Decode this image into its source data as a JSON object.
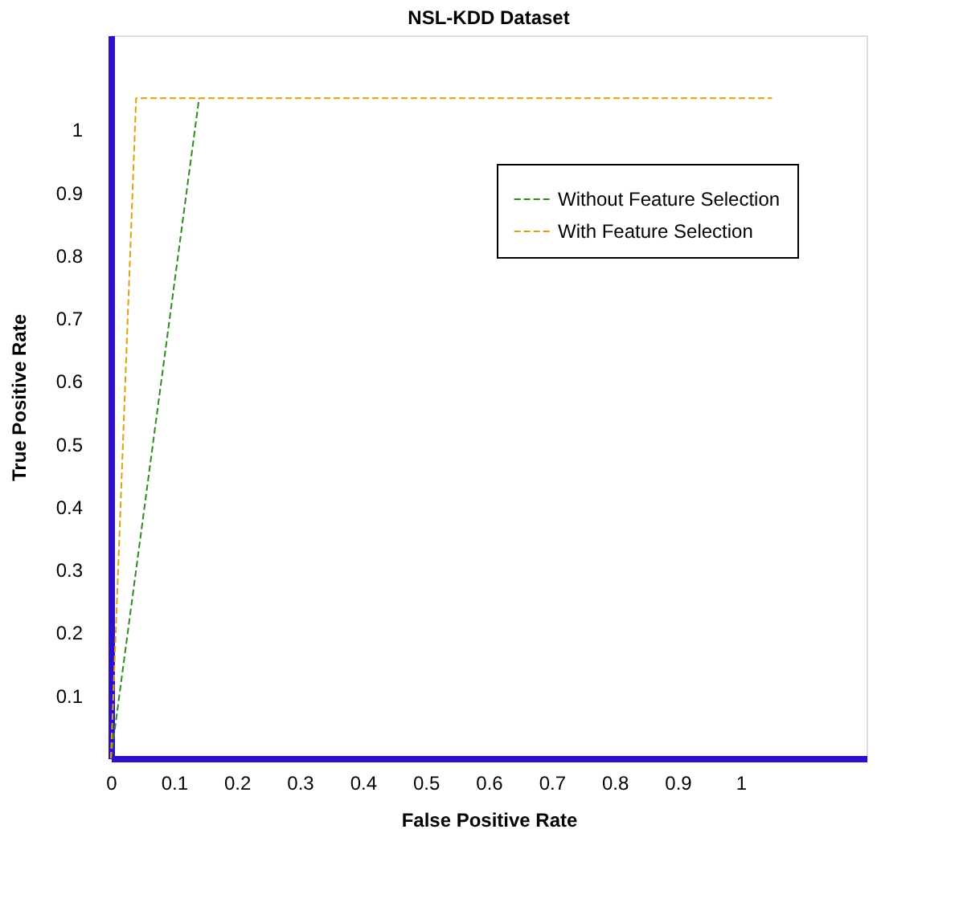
{
  "chart_data": {
    "type": "line",
    "title": "NSL-KDD Dataset",
    "xlabel": "False Positive Rate",
    "ylabel": "True Positive Rate",
    "xlim": [
      0,
      1.2
    ],
    "ylim": [
      0,
      1.15
    ],
    "xticks": [
      0,
      0.1,
      0.2,
      0.3,
      0.4,
      0.5,
      0.6,
      0.7,
      0.8,
      0.9,
      1
    ],
    "yticks": [
      0.1,
      0.2,
      0.3,
      0.4,
      0.5,
      0.6,
      0.7,
      0.8,
      0.9,
      1
    ],
    "series": [
      {
        "name": "Without Feature Selection",
        "color": "#2e8b1e",
        "x": [
          0,
          0.14
        ],
        "values": [
          0,
          1.05
        ]
      },
      {
        "name": "With Feature Selection",
        "color": "#e0a010",
        "x": [
          0,
          0.04,
          1.05
        ],
        "values": [
          0,
          1.05,
          1.05
        ]
      }
    ],
    "line_style": "dashed",
    "marker": "none",
    "grid": false,
    "legend": "top right"
  }
}
